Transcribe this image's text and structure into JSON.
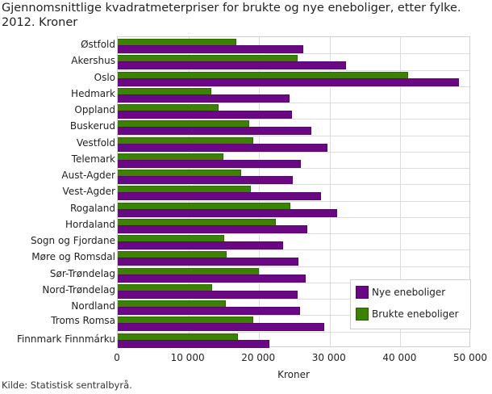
{
  "title": "Gjennomsnittlige kvadratmeterpriser for brukte og nye eneboliger, etter fylke. 2012. Kroner",
  "source": "Kilde: Statistisk sentralbyrå.",
  "colors": {
    "nye": "#6a0783",
    "brukte": "#3d8102"
  },
  "legend": {
    "nye": "Nye eneboliger",
    "brukte": "Brukte eneboliger"
  },
  "x_axis": {
    "label": "Kroner",
    "ticks": [
      "0",
      "10 000",
      "20 000",
      "30 000",
      "40 000",
      "50 000"
    ]
  },
  "chart_data": {
    "type": "bar",
    "orientation": "horizontal",
    "title": "Gjennomsnittlige kvadratmeterpriser for brukte og nye eneboliger, etter fylke. 2012. Kroner",
    "xlabel": "Kroner",
    "ylabel": "",
    "xlim": [
      0,
      50000
    ],
    "grid": true,
    "legend_position": "lower right (inside)",
    "categories": [
      "Østfold",
      "Akershus",
      "Oslo",
      "Hedmark",
      "Oppland",
      "Buskerud",
      "Vestfold",
      "Telemark",
      "Aust-Agder",
      "Vest-Agder",
      "Rogaland",
      "Hordaland",
      "Sogn og Fjordane",
      "Møre og Romsdal",
      "Sør-Trøndelag",
      "Nord-Trøndelag",
      "Nordland",
      "Troms Romsa",
      "Finnmark Finnmárku"
    ],
    "series": [
      {
        "name": "Brukte eneboliger",
        "color": "#3d8102",
        "values": [
          16800,
          25500,
          41100,
          13200,
          14300,
          18600,
          19200,
          15000,
          17500,
          18800,
          24400,
          22400,
          15100,
          15400,
          20000,
          13400,
          15300,
          19200,
          17000
        ]
      },
      {
        "name": "Nye eneboliger",
        "color": "#6a0783",
        "values": [
          26300,
          32300,
          48300,
          24300,
          24700,
          27400,
          29700,
          25900,
          24800,
          28800,
          31000,
          26800,
          23400,
          25600,
          26600,
          25500,
          25800,
          29200,
          21500
        ]
      }
    ]
  }
}
